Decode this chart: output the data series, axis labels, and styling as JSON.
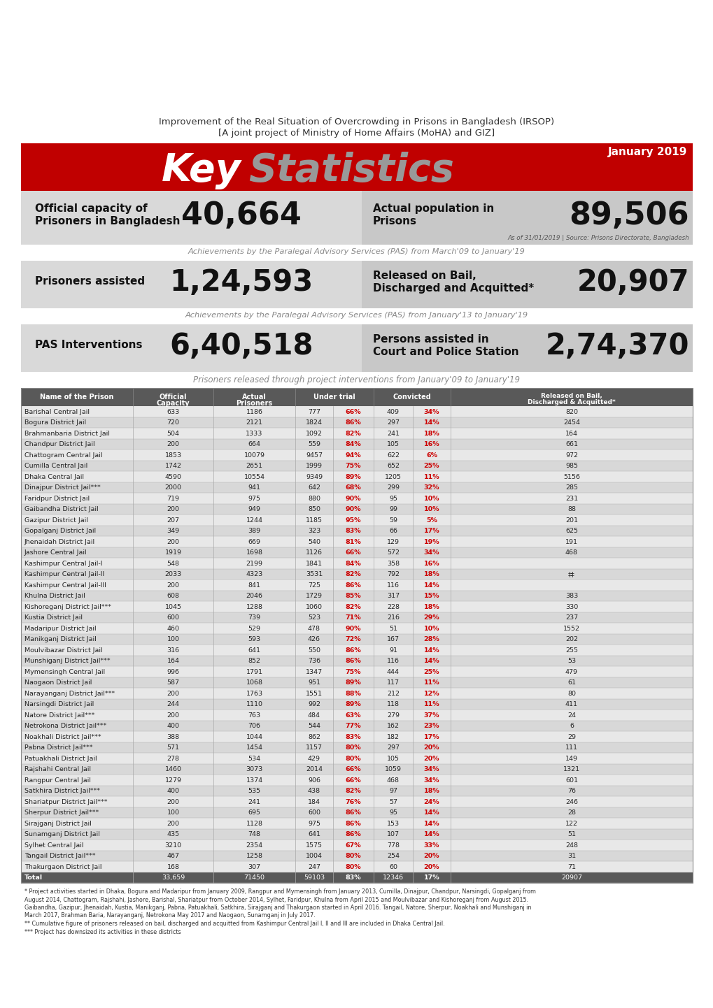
{
  "title_line1": "Improvement of the Real Situation of Overcrowding in Prisons in Bangladesh (IRSOP)",
  "title_line2": "[A joint project of Ministry of Home Affairs (MoHA) and GIZ]",
  "month_year": "January 2019",
  "official_capacity_label1": "Official capacity of",
  "official_capacity_label2": "Prisoners in Bangladesh",
  "official_capacity_value": "40,664",
  "actual_population_label1": "Actual population in",
  "actual_population_label2": "Prisons",
  "actual_population_value": "89,506",
  "source_text": "As of 31/01/2019 | Source: Prisons Directorate, Bangladesh",
  "pas_achievement_text1": "Achievements by the Paralegal Advisory Services (PAS) from March'09 to January'19",
  "prisoners_assisted_label": "Prisoners assisted",
  "prisoners_assisted_value": "1,24,593",
  "released_label1": "Released on Bail,",
  "released_label2": "Discharged and Acquitted*",
  "released_value": "20,907",
  "pas_achievement_text2": "Achievements by the Paralegal Advisory Services (PAS) from January'13 to January'19",
  "pas_interventions_label": "PAS Interventions",
  "pas_interventions_value": "6,40,518",
  "persons_assisted_label1": "Persons assisted in",
  "persons_assisted_label2": "Court and Police Station",
  "persons_assisted_value": "2,74,370",
  "table_title": "Prisoners released through project interventions from January'09 to January'19",
  "table_data": [
    [
      "Barishal Central Jail",
      "633",
      "1186",
      "777",
      "66%",
      "409",
      "34%",
      "820"
    ],
    [
      "Bogura District Jail",
      "720",
      "2121",
      "1824",
      "86%",
      "297",
      "14%",
      "2454"
    ],
    [
      "Brahmanbaria District Jail",
      "504",
      "1333",
      "1092",
      "82%",
      "241",
      "18%",
      "164"
    ],
    [
      "Chandpur District Jail",
      "200",
      "664",
      "559",
      "84%",
      "105",
      "16%",
      "661"
    ],
    [
      "Chattogram Central Jail",
      "1853",
      "10079",
      "9457",
      "94%",
      "622",
      "6%",
      "972"
    ],
    [
      "Cumilla Central Jail",
      "1742",
      "2651",
      "1999",
      "75%",
      "652",
      "25%",
      "985"
    ],
    [
      "Dhaka Central Jail",
      "4590",
      "10554",
      "9349",
      "89%",
      "1205",
      "11%",
      "5156"
    ],
    [
      "Dinajpur District Jail***",
      "2000",
      "941",
      "642",
      "68%",
      "299",
      "32%",
      "285"
    ],
    [
      "Faridpur District Jail",
      "719",
      "975",
      "880",
      "90%",
      "95",
      "10%",
      "231"
    ],
    [
      "Gaibandha District Jail",
      "200",
      "949",
      "850",
      "90%",
      "99",
      "10%",
      "88"
    ],
    [
      "Gazipur District Jail",
      "207",
      "1244",
      "1185",
      "95%",
      "59",
      "5%",
      "201"
    ],
    [
      "Gopalganj District Jail",
      "349",
      "389",
      "323",
      "83%",
      "66",
      "17%",
      "625"
    ],
    [
      "Jhenaidah District Jail",
      "200",
      "669",
      "540",
      "81%",
      "129",
      "19%",
      "191"
    ],
    [
      "Jashore Central Jail",
      "1919",
      "1698",
      "1126",
      "66%",
      "572",
      "34%",
      "468"
    ],
    [
      "Kashimpur Central Jail-I",
      "548",
      "2199",
      "1841",
      "84%",
      "358",
      "16%",
      ""
    ],
    [
      "Kashimpur Central Jail-II",
      "2033",
      "4323",
      "3531",
      "82%",
      "792",
      "18%",
      "‡‡"
    ],
    [
      "Kashimpur Central Jail-III",
      "200",
      "841",
      "725",
      "86%",
      "116",
      "14%",
      ""
    ],
    [
      "Khulna District Jail",
      "608",
      "2046",
      "1729",
      "85%",
      "317",
      "15%",
      "383"
    ],
    [
      "Kishoreganj District Jail***",
      "1045",
      "1288",
      "1060",
      "82%",
      "228",
      "18%",
      "330"
    ],
    [
      "Kustia District Jail",
      "600",
      "739",
      "523",
      "71%",
      "216",
      "29%",
      "237"
    ],
    [
      "Madaripur District Jail",
      "460",
      "529",
      "478",
      "90%",
      "51",
      "10%",
      "1552"
    ],
    [
      "Manikganj District Jail",
      "100",
      "593",
      "426",
      "72%",
      "167",
      "28%",
      "202"
    ],
    [
      "Moulvibazar District Jail",
      "316",
      "641",
      "550",
      "86%",
      "91",
      "14%",
      "255"
    ],
    [
      "Munshiganj District Jail***",
      "164",
      "852",
      "736",
      "86%",
      "116",
      "14%",
      "53"
    ],
    [
      "Mymensingh Central Jail",
      "996",
      "1791",
      "1347",
      "75%",
      "444",
      "25%",
      "479"
    ],
    [
      "Naogaon District Jail",
      "587",
      "1068",
      "951",
      "89%",
      "117",
      "11%",
      "61"
    ],
    [
      "Narayanganj District Jail***",
      "200",
      "1763",
      "1551",
      "88%",
      "212",
      "12%",
      "80"
    ],
    [
      "Narsingdi District Jail",
      "244",
      "1110",
      "992",
      "89%",
      "118",
      "11%",
      "411"
    ],
    [
      "Natore District Jail***",
      "200",
      "763",
      "484",
      "63%",
      "279",
      "37%",
      "24"
    ],
    [
      "Netrokona District Jail***",
      "400",
      "706",
      "544",
      "77%",
      "162",
      "23%",
      "6"
    ],
    [
      "Noakhali District Jail***",
      "388",
      "1044",
      "862",
      "83%",
      "182",
      "17%",
      "29"
    ],
    [
      "Pabna District Jail***",
      "571",
      "1454",
      "1157",
      "80%",
      "297",
      "20%",
      "111"
    ],
    [
      "Patuakhali District Jail",
      "278",
      "534",
      "429",
      "80%",
      "105",
      "20%",
      "149"
    ],
    [
      "Rajshahi Central Jail",
      "1460",
      "3073",
      "2014",
      "66%",
      "1059",
      "34%",
      "1321"
    ],
    [
      "Rangpur Central Jail",
      "1279",
      "1374",
      "906",
      "66%",
      "468",
      "34%",
      "601"
    ],
    [
      "Satkhira District Jail***",
      "400",
      "535",
      "438",
      "82%",
      "97",
      "18%",
      "76"
    ],
    [
      "Shariatpur District Jail***",
      "200",
      "241",
      "184",
      "76%",
      "57",
      "24%",
      "246"
    ],
    [
      "Sherpur District Jail***",
      "100",
      "695",
      "600",
      "86%",
      "95",
      "14%",
      "28"
    ],
    [
      "Sirajganj District Jail",
      "200",
      "1128",
      "975",
      "86%",
      "153",
      "14%",
      "122"
    ],
    [
      "Sunamganj District Jail",
      "435",
      "748",
      "641",
      "86%",
      "107",
      "14%",
      "51"
    ],
    [
      "Sylhet Central Jail",
      "3210",
      "2354",
      "1575",
      "67%",
      "778",
      "33%",
      "248"
    ],
    [
      "Tangail District Jail***",
      "467",
      "1258",
      "1004",
      "80%",
      "254",
      "20%",
      "31"
    ],
    [
      "Thakurgaon District Jail",
      "168",
      "307",
      "247",
      "80%",
      "60",
      "20%",
      "71"
    ],
    [
      "Total",
      "33,659",
      "71450",
      "59103",
      "83%",
      "12346",
      "17%",
      "20907"
    ]
  ],
  "footnotes": [
    "* Project activities started in Dhaka, Bogura and Madaripur from January 2009, Rangpur and Mymensingh from January 2013, Cumilla, Dinajpur, Chandpur, Narsingdi, Gopalganj from",
    "August 2014, Chattogram, Rajshahi, Jashore, Barishal, Shariatpur from October 2014, Sylhet, Faridpur, Khulna from April 2015 and Moulvibazar and Kishoreganj from August 2015.",
    "Gaibandha, Gazipur, Jhenaidah, Kustia, Manikganj, Pabna, Patuakhali, Satkhira, Sirajganj and Thakurgaon started in April 2016. Tangail, Natore, Sherpur, Noakhali and Munshiganj in",
    "March 2017, Brahman Baria, Narayanganj, Netrokona May 2017 and Naogaon, Sunamganj in July 2017.",
    "** Cumulative figure of prisoners released on bail, discharged and acquitted from Kashimpur Central Jail I, II and III are included in Dhaka Central Jail.",
    "*** Project has downsized its activities in these districts"
  ],
  "bg_color": "#ffffff",
  "header_red": "#c00000",
  "table_header_dark": "#595959",
  "table_row_light": "#e8e8e8",
  "table_row_dark": "#d8d8d8",
  "stats_bg_light": "#d9d9d9",
  "stats_bg_medium": "#c8c8c8",
  "red_color": "#cc0000",
  "dark_gray": "#595959"
}
